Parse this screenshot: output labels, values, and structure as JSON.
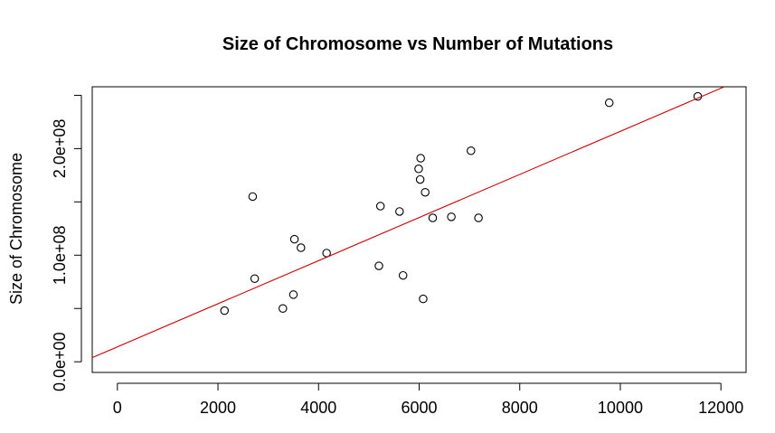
{
  "chart_data": {
    "type": "scatter",
    "title": "Size of Chromosome vs Number of Mutations",
    "xlabel": "",
    "ylabel": "Size of Chromosome",
    "xlim": [
      -500,
      12500
    ],
    "ylim": [
      -10000000,
      258000000
    ],
    "x_ticks": [
      0,
      2000,
      4000,
      6000,
      8000,
      10000,
      12000
    ],
    "x_tick_labels": [
      "0",
      "2000",
      "4000",
      "6000",
      "8000",
      "10000",
      "12000"
    ],
    "y_ticks": [
      0,
      50000000,
      100000000,
      150000000,
      200000000,
      250000000
    ],
    "y_tick_labels": [
      "0.0e+00",
      "",
      "1.0e+08",
      "",
      "2.0e+08",
      ""
    ],
    "grid": false,
    "series": [
      {
        "points": [
          {
            "x": 2130,
            "y": 48000000
          },
          {
            "x": 2690,
            "y": 155000000
          },
          {
            "x": 2730,
            "y": 78000000
          },
          {
            "x": 3290,
            "y": 50000000
          },
          {
            "x": 3500,
            "y": 63000000
          },
          {
            "x": 3520,
            "y": 115000000
          },
          {
            "x": 3650,
            "y": 107000000
          },
          {
            "x": 4160,
            "y": 102000000
          },
          {
            "x": 5200,
            "y": 90000000
          },
          {
            "x": 5230,
            "y": 146000000
          },
          {
            "x": 5610,
            "y": 141000000
          },
          {
            "x": 5680,
            "y": 81000000
          },
          {
            "x": 5990,
            "y": 181000000
          },
          {
            "x": 6020,
            "y": 171000000
          },
          {
            "x": 6030,
            "y": 191000000
          },
          {
            "x": 6080,
            "y": 59000000
          },
          {
            "x": 6120,
            "y": 159000000
          },
          {
            "x": 6270,
            "y": 135000000
          },
          {
            "x": 6640,
            "y": 136000000
          },
          {
            "x": 7030,
            "y": 198000000
          },
          {
            "x": 7180,
            "y": 135000000
          },
          {
            "x": 9780,
            "y": 243000000
          },
          {
            "x": 11540,
            "y": 249000000
          }
        ]
      }
    ],
    "fit_line": {
      "intercept": 14000000,
      "slope": 20220,
      "color": "#cc0000"
    },
    "point_color": "#000000"
  }
}
